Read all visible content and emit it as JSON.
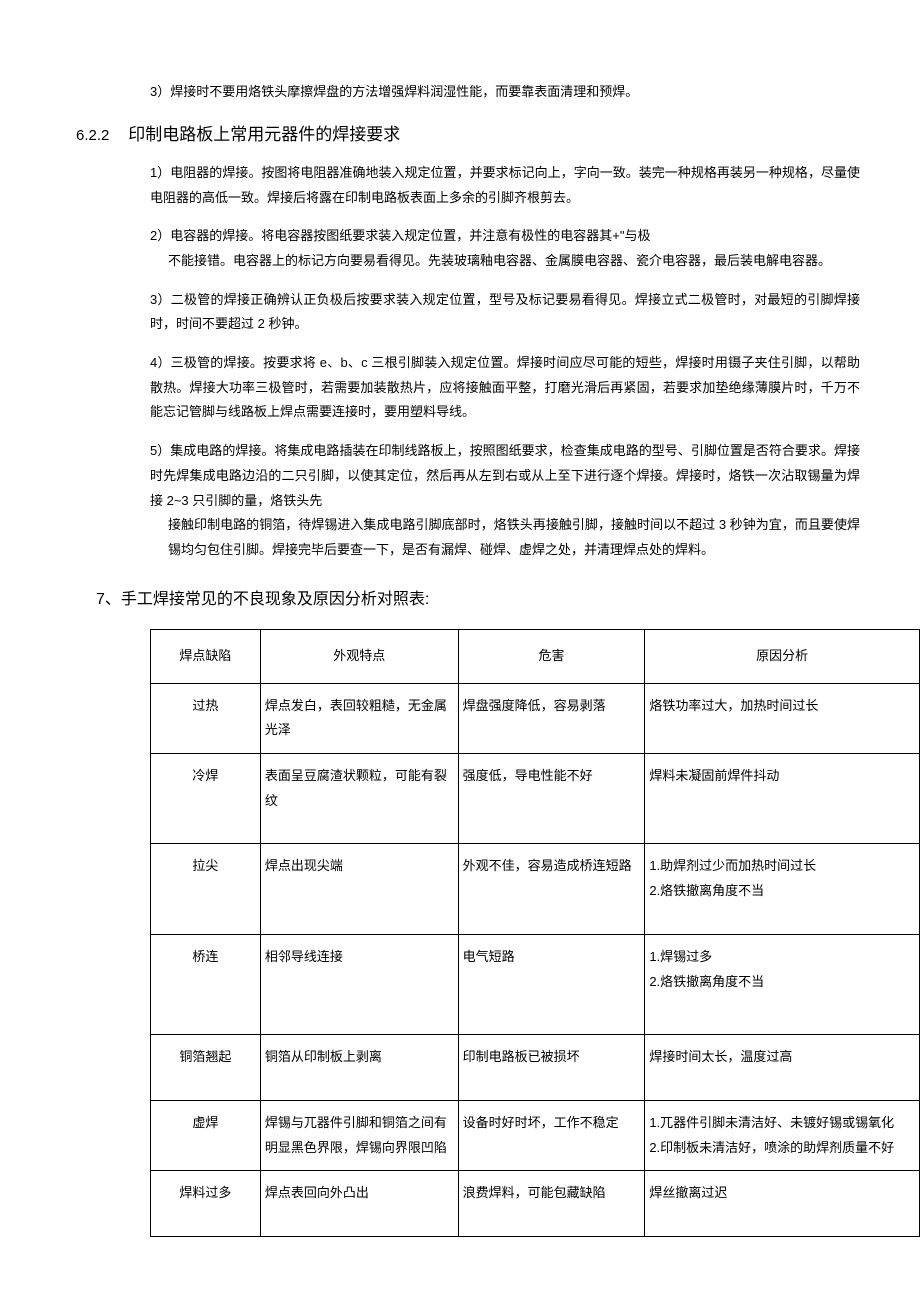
{
  "intro_item": {
    "num": "3）",
    "text": "焊接时不要用烙铁头摩擦焊盘的方法增强焊料润湿性能，而要靠表面清理和预焊。"
  },
  "section622": {
    "num": "6.2.2",
    "title": "印制电路板上常用元器件的焊接要求",
    "items": [
      {
        "num": "1）",
        "text": "电阻器的焊接。按图将电阻器准确地装入规定位置，并要求标记向上，字向一致。装完一种规格再装另一种规格，尽量使电阻器的高低一致。焊接后将露在印制电路板表面上多余的引脚齐根剪去。"
      },
      {
        "num": "2）",
        "text": "电容器的焊接。将电容器按图纸要求装入规定位置，并注意有极性的电容器其+\"与极",
        "cont": "不能接错。电容器上的标记方向要易看得见。先装玻璃釉电容器、金属膜电容器、瓷介电容器，最后装电解电容器。"
      },
      {
        "num": "3）",
        "text": "二极管的焊接正确辨认正负极后按要求装入规定位置，型号及标记要易看得见。焊接立式二极管时，对最短的引脚焊接时，时间不要超过 2 秒钟。"
      },
      {
        "num": "4）",
        "text": "三极管的焊接。按要求将 e、b、c 三根引脚装入规定位置。焊接时间应尽可能的短些，焊接时用镊子夹住引脚，以帮助散热。焊接大功率三极管时，若需要加装散热片，应将接触面平整，打磨光滑后再紧固，若要求加垫绝缘薄膜片时，千万不能忘记管脚与线路板上焊点需要连接时，要用塑料导线。"
      },
      {
        "num": "5）",
        "text": "集成电路的焊接。将集成电路插装在印制线路板上，按照图纸要求，检查集成电路的型号、引脚位置是否符合要求。焊接时先焊集成电路边沿的二只引脚，以使其定位，然后再从左到右或从上至下进行逐个焊接。焊接时，烙铁一次沾取锡量为焊接 2~3 只引脚的量，烙铁头先",
        "cont": "接触印制电路的铜箔，待焊锡进入集成电路引脚底部时，烙铁头再接触引脚，接触时间以不超过 3 秒钟为宜，而且要使焊锡均匀包住引脚。焊接完毕后要查一下，是否有漏焊、碰焊、虚焊之处，并清理焊点处的焊料。"
      }
    ]
  },
  "section7": {
    "title": "7、手工焊接常见的不良现象及原因分析对照表:",
    "table": {
      "headers": [
        "焊点缺陷",
        "外观特点",
        "危害",
        "原因分析"
      ],
      "rows": [
        {
          "c1": "过热",
          "c2": "焊点发白，表回较粗糙，无金属光泽",
          "c3": "焊盘强度降低，容易剥落",
          "c4": "烙铁功率过大，加热时间过长"
        },
        {
          "c1": "冷焊",
          "c2": "表面呈豆腐渣状颗粒，可能有裂纹",
          "c3": "强度低，导电性能不好",
          "c4": "焊料未凝固前焊件抖动"
        },
        {
          "c1": "拉尖",
          "c2": "焊点出现尖端",
          "c3": "外观不佳，容易造成桥连短路",
          "c4": "1.助焊剂过少而加热时间过长\n2.烙铁撤离角度不当"
        },
        {
          "c1": "桥连",
          "c2": "相邻导线连接",
          "c3": "电气短路",
          "c4": "1.焊锡过多\n2.烙铁撤离角度不当"
        },
        {
          "c1": "铜箔翘起",
          "c2": "铜箔从印制板上剥离",
          "c3": "印制电路板已被损坏",
          "c4": "焊接时间太长，温度过高"
        },
        {
          "c1": "虚焊",
          "c2": "焊锡与兀器件引脚和铜箔之间有明显黑色界限，焊锡向界限凹陷",
          "c3": "设备时好时坏，工作不稳定",
          "c4": "1.兀器件引脚未清洁好、未镀好锡或锡氧化\n2.印制板未清洁好，喷涂的助焊剂质量不好"
        },
        {
          "c1": "焊料过多",
          "c2": "焊点表回向外凸出",
          "c3": "浪费焊料，可能包藏缺陷",
          "c4": "焊丝撤离过迟"
        }
      ]
    }
  }
}
